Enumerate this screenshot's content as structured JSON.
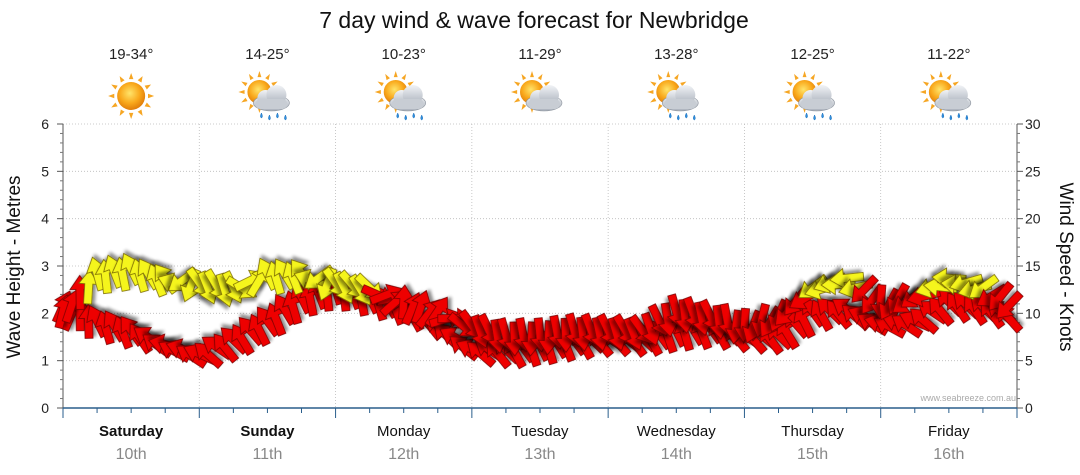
{
  "chart_data": {
    "type": "line",
    "title": "7 day wind & wave forecast for Newbridge",
    "ylabel_left": "Wave Height - Metres",
    "ylabel_right": "Wind Speed - Knots",
    "ylim_left": [
      0,
      6
    ],
    "ylim_right": [
      0,
      30
    ],
    "left_ticks": [
      "0",
      "1",
      "2",
      "3",
      "4",
      "5",
      "6"
    ],
    "right_ticks": [
      "0",
      "5",
      "10",
      "15",
      "20",
      "25",
      "30"
    ],
    "credit": "www.seabreeze.com.au",
    "days": [
      {
        "name": "Saturday",
        "date": "10th",
        "temp": "19-34°",
        "icon": "sun-icon",
        "bold": true
      },
      {
        "name": "Sunday",
        "date": "11th",
        "temp": "14-25°",
        "icon": "sun-rain-icon",
        "bold": true
      },
      {
        "name": "Monday",
        "date": "12th",
        "temp": "10-23°",
        "icon": "sun-rain-icon",
        "bold": false
      },
      {
        "name": "Tuesday",
        "date": "13th",
        "temp": "11-29°",
        "icon": "sun-cloud-icon",
        "bold": false
      },
      {
        "name": "Wednesday",
        "date": "14th",
        "temp": "13-28°",
        "icon": "sun-rain-icon",
        "bold": false
      },
      {
        "name": "Thursday",
        "date": "15th",
        "temp": "12-25°",
        "icon": "sun-rain-icon",
        "bold": false
      },
      {
        "name": "Friday",
        "date": "16th",
        "temp": "11-22°",
        "icon": "sun-rain-icon",
        "bold": false
      }
    ],
    "series": [
      {
        "name": "Wind Speed - Knots",
        "axis": "right",
        "x_day": [
          0,
          0.25,
          0.5,
          0.75,
          1,
          1.25,
          1.5,
          1.75,
          2,
          2.25,
          2.5,
          2.75,
          3,
          3.25,
          3.5,
          3.75,
          4,
          4.25,
          4.5,
          4.75,
          5,
          5.25,
          5.5,
          5.75,
          6,
          6.25,
          6.5,
          6.75,
          7
        ],
        "values": [
          10,
          14,
          14.5,
          13.5,
          13,
          12.5,
          14,
          14,
          13,
          12.5,
          11,
          10,
          8.5,
          7.5,
          7.5,
          8,
          8,
          8,
          10,
          9.5,
          8.5,
          9.5,
          12.5,
          13.5,
          11,
          11.5,
          13.5,
          12.5,
          10.5
        ],
        "direction_deg": [
          290,
          260,
          250,
          240,
          60,
          70,
          250,
          240,
          60,
          50,
          280,
          310,
          60,
          80,
          90,
          80,
          70,
          60,
          80,
          70,
          100,
          120,
          150,
          180,
          100,
          150,
          190,
          150,
          120
        ]
      },
      {
        "name": "Wave Height - Metres",
        "axis": "left",
        "x_day": [
          0,
          0.25,
          0.5,
          0.75,
          1,
          1.25,
          1.5,
          1.75,
          2,
          2.25,
          2.5,
          2.75,
          3,
          3.25,
          3.5,
          3.75,
          4,
          4.25,
          4.5,
          4.75,
          5,
          5.25,
          5.5,
          5.75,
          6,
          6.25,
          6.5,
          6.75,
          7
        ],
        "values": [
          2.1,
          1.8,
          1.6,
          1.3,
          1.1,
          1.4,
          1.8,
          2.3,
          2.5,
          2.3,
          2.1,
          1.7,
          1.2,
          1.2,
          1.3,
          1.4,
          1.45,
          1.45,
          1.6,
          1.65,
          1.5,
          1.5,
          2.0,
          2.05,
          1.75,
          1.8,
          2.2,
          2.1,
          1.9
        ],
        "direction_deg": [
          300,
          250,
          240,
          200,
          210,
          230,
          240,
          250,
          260,
          250,
          240,
          220,
          210,
          230,
          250,
          240,
          220,
          230,
          250,
          240,
          220,
          230,
          240,
          220,
          200,
          210,
          230,
          230,
          220
        ]
      }
    ]
  }
}
